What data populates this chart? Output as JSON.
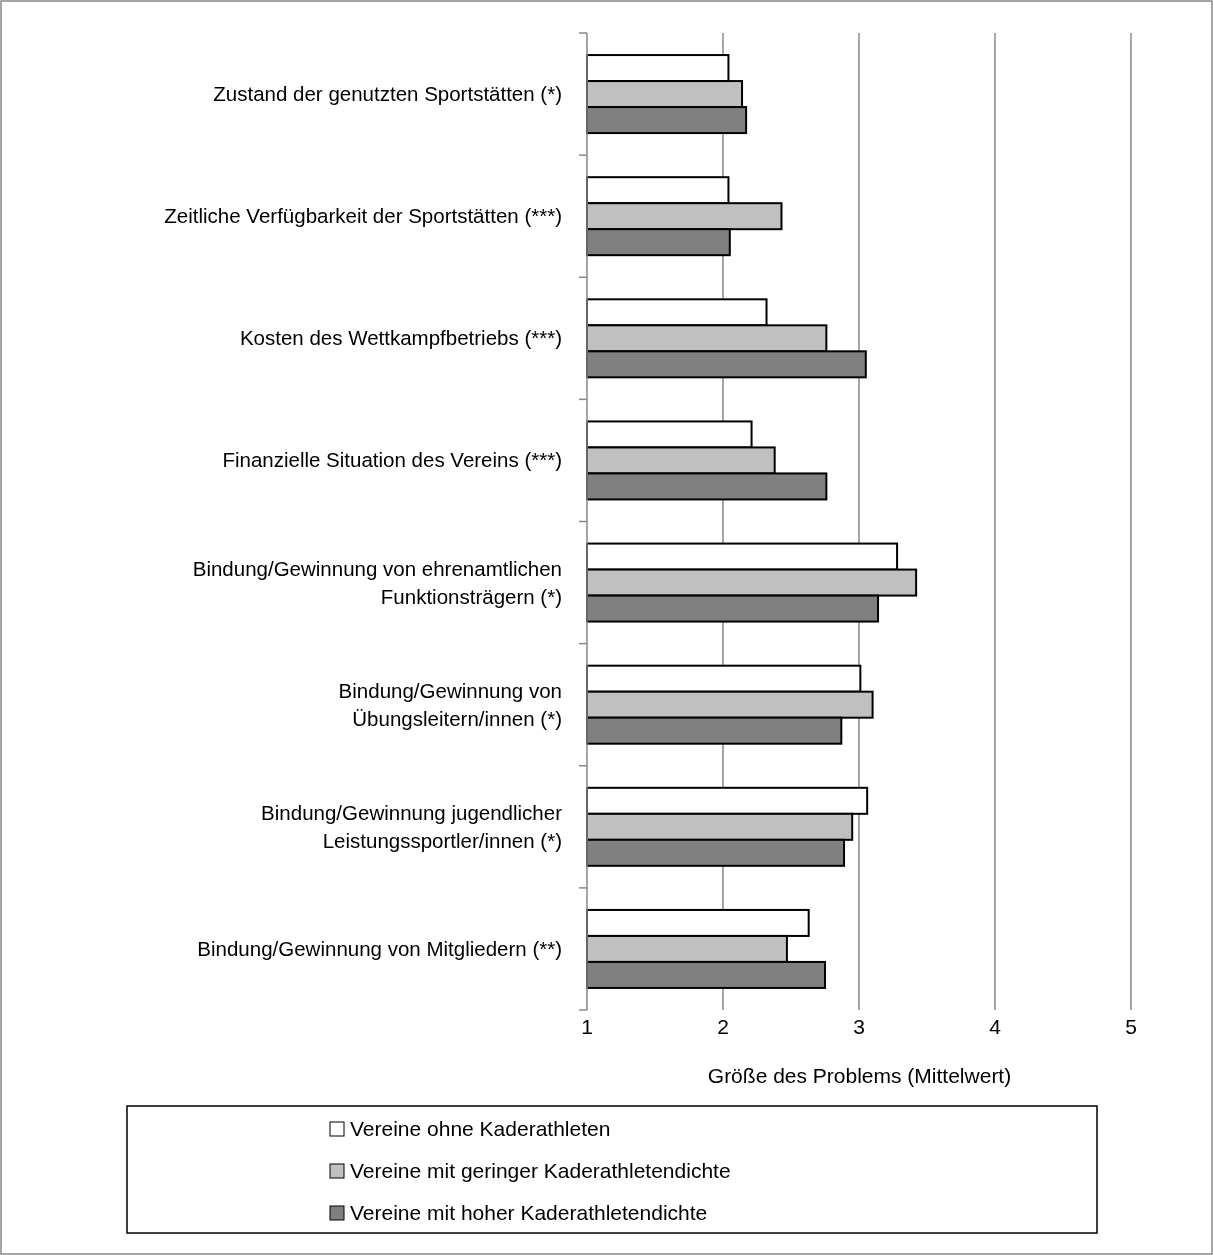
{
  "chart_data": {
    "type": "bar",
    "orientation": "horizontal",
    "xlabel": "Größe des Problems (Mittelwert)",
    "categories": [
      "Zustand der genutzten Sportstätten (*)",
      "Zeitliche Verfügbarkeit der Sportstätten (***)",
      "Kosten des Wettkampfbetriebs (***)",
      "Finanzielle Situation des Vereins (***)",
      "Bindung/Gewinnung von ehrenamtlichen\nFunktionsträgern (*)",
      "Bindung/Gewinnung von\nÜbungsleitern/innen  (*)",
      "Bindung/Gewinnung jugendlicher\nLeistungssportler/innen  (*)",
      "Bindung/Gewinnung von Mitgliedern (**)"
    ],
    "series": [
      {
        "name": "Vereine ohne Kaderathleten",
        "color": "#ffffff",
        "values": [
          2.04,
          2.04,
          2.32,
          2.21,
          3.28,
          3.01,
          3.06,
          2.63
        ]
      },
      {
        "name": "Vereine mit geringer Kaderathletendichte",
        "color": "#c0c0c0",
        "values": [
          2.14,
          2.43,
          2.76,
          2.38,
          3.42,
          3.1,
          2.95,
          2.47
        ]
      },
      {
        "name": "Vereine mit hoher Kaderathletendichte",
        "color": "#808080",
        "values": [
          2.17,
          2.05,
          3.05,
          2.76,
          3.14,
          2.87,
          2.89,
          2.75
        ]
      }
    ],
    "xlim": [
      1,
      5
    ],
    "xticks": [
      1,
      2,
      3,
      4,
      5
    ],
    "grid": "x",
    "legend": "bottom"
  }
}
